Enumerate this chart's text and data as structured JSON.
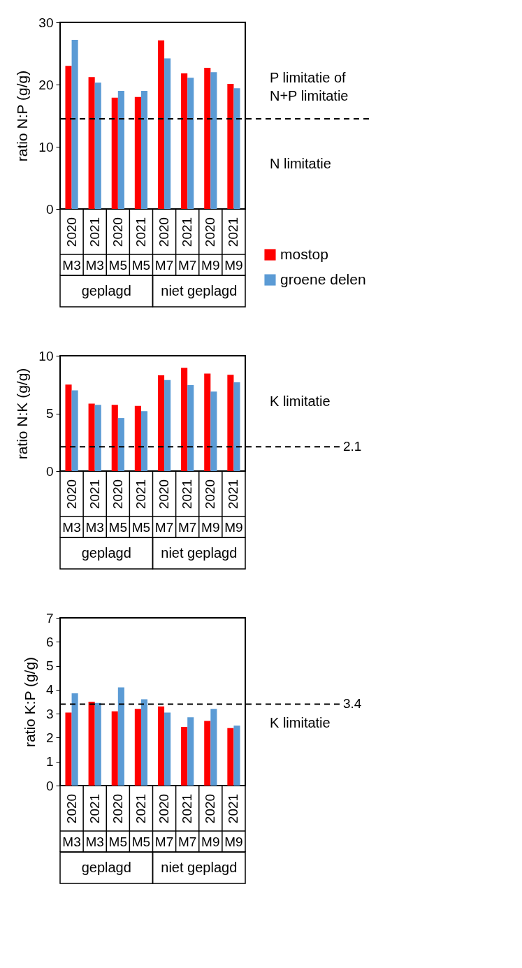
{
  "chart_data": [
    {
      "type": "bar",
      "ylabel": "ratio N:P  (g/g)",
      "categories": [
        "2020",
        "2021",
        "2020",
        "2021",
        "2020",
        "2021",
        "2020",
        "2021"
      ],
      "series": [
        {
          "name": "mostop",
          "color": "#ff0000",
          "values": [
            23.0,
            21.2,
            17.9,
            18.0,
            27.1,
            21.8,
            22.7,
            20.1
          ]
        },
        {
          "name": "groene delen",
          "color": "#5b9bd5",
          "values": [
            27.2,
            20.3,
            19.0,
            19.0,
            24.2,
            21.1,
            22.0,
            19.4
          ]
        }
      ],
      "ylim": [
        0,
        30
      ],
      "yticks": [
        0,
        10,
        20,
        30
      ],
      "legend": "right",
      "ref_lines": [
        {
          "axis": "y",
          "value": 14.5,
          "line_style": "dashed"
        }
      ],
      "annotations": [
        "P limitatie of N+P limitatie",
        "N limitatie",
        "M3",
        "M3",
        "M5",
        "M5",
        "M7",
        "M7",
        "M9",
        "M9",
        "geplagd",
        "niet geplagd"
      ]
    },
    {
      "type": "bar",
      "ylabel": "ratio N:K  (g/g)",
      "categories": [
        "2020",
        "2021",
        "2020",
        "2021",
        "2020",
        "2021",
        "2020",
        "2021"
      ],
      "series": [
        {
          "color": "#ff0000",
          "values": [
            7.5,
            5.85,
            5.75,
            5.65,
            8.3,
            8.95,
            8.45,
            8.35
          ]
        },
        {
          "color": "#5b9bd5",
          "values": [
            7.0,
            5.75,
            4.6,
            5.2,
            7.9,
            7.45,
            6.9,
            7.7
          ]
        }
      ],
      "ylim": [
        0,
        10
      ],
      "yticks": [
        0,
        5,
        10
      ],
      "ref_lines": [
        {
          "axis": "y",
          "value": 2.1,
          "label": "2.1",
          "line_style": "dashed"
        }
      ],
      "annotations": [
        "K limitatie",
        "M3",
        "M3",
        "M5",
        "M5",
        "M7",
        "M7",
        "M9",
        "M9",
        "geplagd",
        "niet geplagd"
      ]
    },
    {
      "type": "bar",
      "ylabel": "ratio K:P  (g/g)",
      "categories": [
        "2020",
        "2021",
        "2020",
        "2021",
        "2020",
        "2021",
        "2020",
        "2021"
      ],
      "series": [
        {
          "color": "#ff0000",
          "values": [
            3.05,
            3.5,
            3.1,
            3.2,
            3.3,
            2.45,
            2.7,
            2.4
          ]
        },
        {
          "color": "#5b9bd5",
          "values": [
            3.85,
            3.45,
            4.1,
            3.6,
            3.05,
            2.85,
            3.2,
            2.5
          ]
        }
      ],
      "ylim": [
        0,
        7
      ],
      "yticks": [
        0,
        1,
        2,
        3,
        4,
        5,
        6,
        7
      ],
      "ref_lines": [
        {
          "axis": "y",
          "value": 3.4,
          "label": "3.4",
          "line_style": "dashed"
        }
      ],
      "annotations": [
        "K limitatie",
        "M3",
        "M3",
        "M5",
        "M5",
        "M7",
        "M7",
        "M9",
        "M9",
        "geplagd",
        "niet geplagd"
      ]
    }
  ]
}
